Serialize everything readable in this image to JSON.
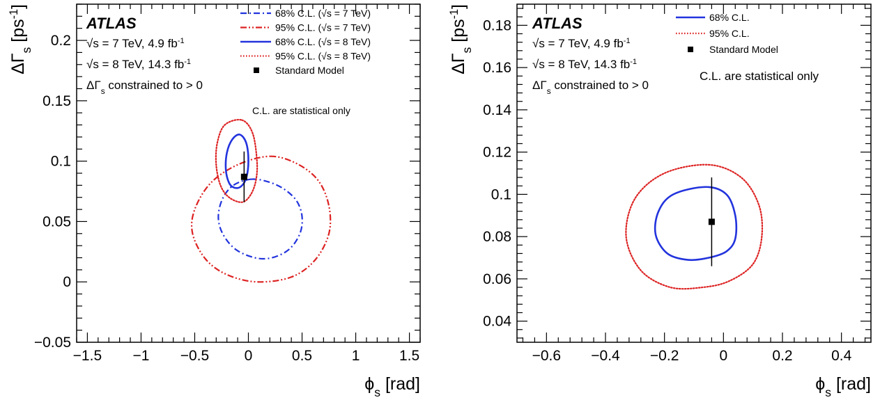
{
  "chart_data": [
    {
      "type": "contour",
      "experiment": "ATLAS",
      "info_lines": [
        "√s = 7 TeV, 4.9 fb⁻¹",
        "√s = 8 TeV, 14.3 fb⁻¹",
        "ΔΓₛ constrained to > 0"
      ],
      "xlabel": "ϕₛ [rad]",
      "ylabel": "ΔΓₛ [ps⁻¹]",
      "xlim": [
        -1.6,
        1.6
      ],
      "ylim": [
        -0.05,
        0.23
      ],
      "xticks": [
        -1.5,
        -1,
        -0.5,
        0,
        0.5,
        1,
        1.5
      ],
      "xtick_labels": [
        "−1.5",
        "−1",
        "−0.5",
        "0",
        "0.5",
        "1",
        "1.5"
      ],
      "yticks": [
        -0.05,
        0,
        0.05,
        0.1,
        0.15,
        0.2
      ],
      "ytick_labels": [
        "−0.05",
        "0",
        "0.05",
        "0.1",
        "0.15",
        "0.2"
      ],
      "legend_position": "top-right",
      "note": "C.L. are statistical only",
      "series": [
        {
          "name": "68% C.L. (√s = 7 TeV)",
          "color": "#2233dd",
          "style": "dashdot",
          "x": [
            0.02,
            0.18,
            0.33,
            0.45,
            0.5,
            0.48,
            0.38,
            0.22,
            0.06,
            -0.12,
            -0.24,
            -0.28,
            -0.24,
            -0.14,
            0.02
          ],
          "y": [
            0.085,
            0.083,
            0.077,
            0.067,
            0.054,
            0.04,
            0.027,
            0.02,
            0.02,
            0.027,
            0.04,
            0.054,
            0.069,
            0.08,
            0.085
          ]
        },
        {
          "name": "95% C.L. (√s = 7 TeV)",
          "color": "#dd2222",
          "style": "dashdotdot",
          "x": [
            0.2,
            0.45,
            0.65,
            0.75,
            0.75,
            0.62,
            0.4,
            0.08,
            -0.2,
            -0.4,
            -0.52,
            -0.5,
            -0.35,
            -0.1,
            0.2
          ],
          "y": [
            0.104,
            0.098,
            0.084,
            0.063,
            0.04,
            0.018,
            0.004,
            0.0,
            0.006,
            0.019,
            0.04,
            0.06,
            0.082,
            0.097,
            0.104
          ]
        },
        {
          "name": "68% C.L. (√s = 8 TeV)",
          "color": "#2233dd",
          "style": "solid",
          "x": [
            -0.08,
            -0.02,
            0.0,
            -0.02,
            -0.07,
            -0.13,
            -0.18,
            -0.21,
            -0.2,
            -0.15,
            -0.08
          ],
          "y": [
            0.122,
            0.115,
            0.1,
            0.086,
            0.079,
            0.078,
            0.082,
            0.093,
            0.107,
            0.118,
            0.122
          ]
        },
        {
          "name": "95% C.L. (√s = 8 TeV)",
          "color": "#dd2222",
          "style": "dotted",
          "x": [
            -0.06,
            0.04,
            0.08,
            0.07,
            0.02,
            -0.06,
            -0.18,
            -0.26,
            -0.3,
            -0.29,
            -0.22,
            -0.06
          ],
          "y": [
            0.134,
            0.123,
            0.1,
            0.084,
            0.072,
            0.066,
            0.07,
            0.08,
            0.097,
            0.115,
            0.13,
            0.134
          ]
        }
      ],
      "sm_point": {
        "name": "Standard Model",
        "x": -0.04,
        "y": 0.087,
        "yerr": 0.021
      }
    },
    {
      "type": "contour",
      "experiment": "ATLAS",
      "info_lines": [
        "√s = 7 TeV, 4.9 fb⁻¹",
        "√s = 8 TeV, 14.3 fb⁻¹",
        "ΔΓₛ constrained to > 0"
      ],
      "xlabel": "ϕₛ [rad]",
      "ylabel": "ΔΓₛ [ps⁻¹]",
      "xlim": [
        -0.7,
        0.5
      ],
      "ylim": [
        0.03,
        0.19
      ],
      "xticks": [
        -0.6,
        -0.4,
        -0.2,
        0,
        0.2,
        0.4
      ],
      "xtick_labels": [
        "−0.6",
        "−0.4",
        "−0.2",
        "0",
        "0.2",
        "0.4"
      ],
      "yticks": [
        0.04,
        0.06,
        0.08,
        0.1,
        0.12,
        0.14,
        0.16,
        0.18
      ],
      "ytick_labels": [
        "0.04",
        "0.06",
        "0.08",
        "0.1",
        "0.12",
        "0.14",
        "0.16",
        "0.18"
      ],
      "legend_position": "top-right",
      "note": "C.L. are statistical only",
      "series": [
        {
          "name": "68% C.L.",
          "color": "#2233dd",
          "style": "solid",
          "x": [
            -0.06,
            0.01,
            0.04,
            0.04,
            0.01,
            -0.05,
            -0.12,
            -0.19,
            -0.23,
            -0.22,
            -0.17,
            -0.06
          ],
          "y": [
            0.1035,
            0.1,
            0.09,
            0.079,
            0.073,
            0.07,
            0.069,
            0.072,
            0.081,
            0.092,
            0.1,
            0.1035
          ]
        },
        {
          "name": "95% C.L.",
          "color": "#dd2222",
          "style": "dotted",
          "x": [
            -0.05,
            0.06,
            0.12,
            0.13,
            0.1,
            0.02,
            -0.07,
            -0.18,
            -0.28,
            -0.33,
            -0.3,
            -0.2,
            -0.05
          ],
          "y": [
            0.114,
            0.108,
            0.095,
            0.08,
            0.067,
            0.059,
            0.056,
            0.056,
            0.064,
            0.08,
            0.098,
            0.11,
            0.114
          ]
        }
      ],
      "sm_point": {
        "name": "Standard Model",
        "x": -0.04,
        "y": 0.087,
        "yerr": 0.021
      }
    }
  ]
}
